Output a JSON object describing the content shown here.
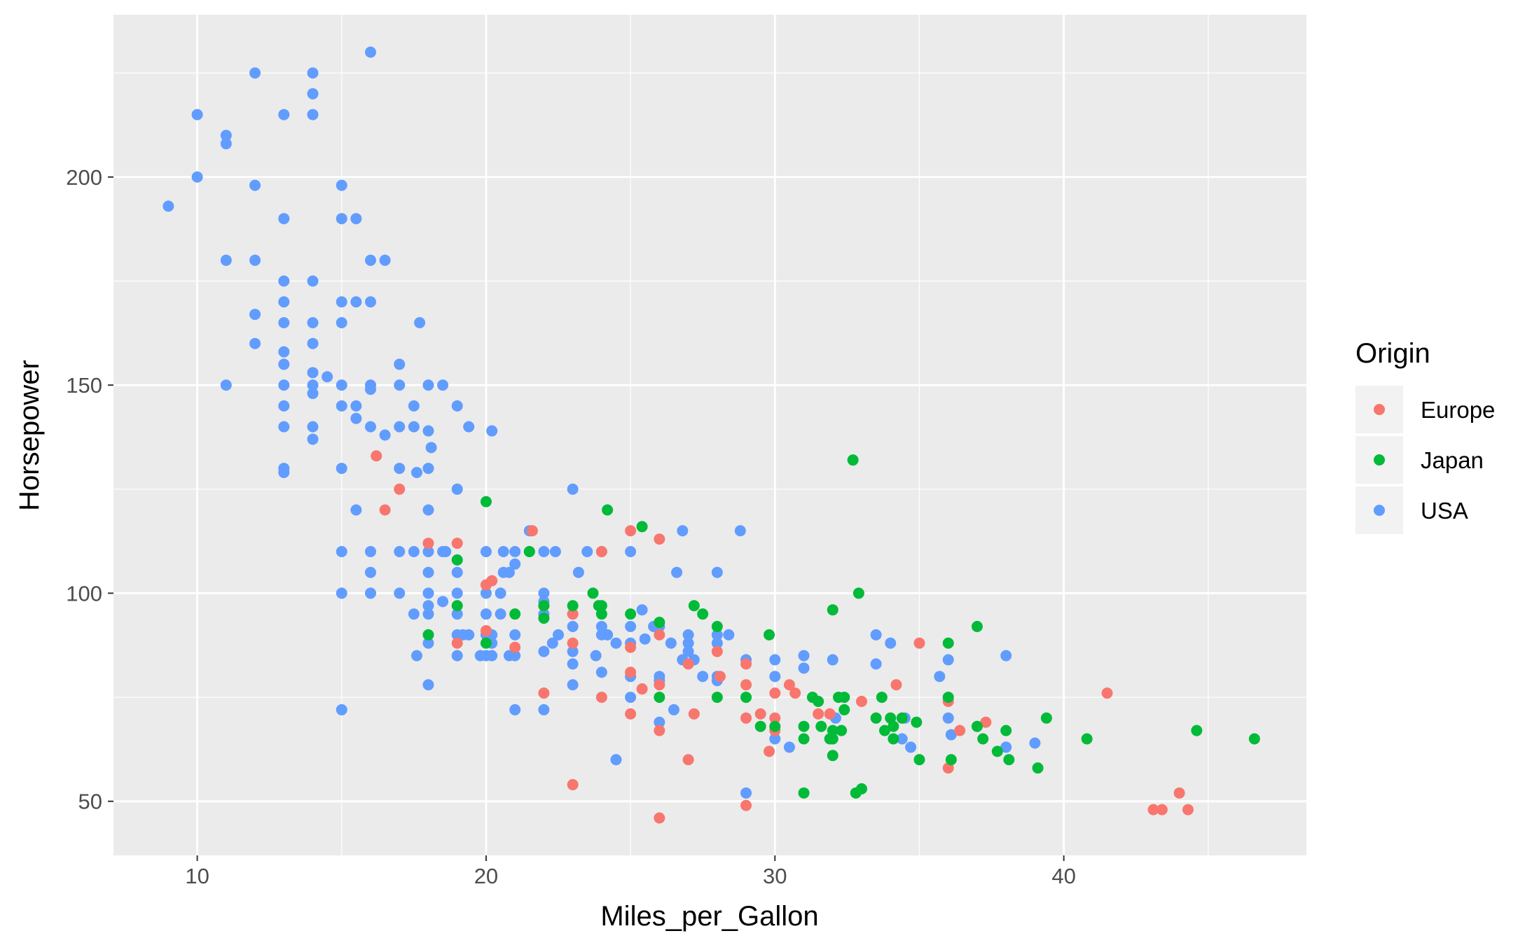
{
  "chart_data": {
    "type": "scatter",
    "xlabel": "Miles_per_Gallon",
    "ylabel": "Horsepower",
    "xlim": [
      7.1,
      48.4
    ],
    "ylim": [
      37.0,
      239.0
    ],
    "x_ticks": [
      10,
      20,
      30,
      40
    ],
    "y_ticks": [
      50,
      100,
      150,
      200
    ],
    "x_tick_labels": [
      "10",
      "20",
      "30",
      "40"
    ],
    "y_tick_labels": [
      "50",
      "100",
      "150",
      "200"
    ],
    "grid": true,
    "legend": {
      "title": "Origin",
      "position": "right"
    },
    "colors": {
      "Europe": "#F8766D",
      "Japan": "#00BA38",
      "USA": "#619CFF",
      "panel": "#EBEBEB",
      "grid": "#FFFFFF"
    },
    "series": [
      {
        "name": "USA",
        "points": [
          [
            9,
            193
          ],
          [
            10,
            215
          ],
          [
            10,
            200
          ],
          [
            11,
            210
          ],
          [
            11,
            208
          ],
          [
            11,
            180
          ],
          [
            11,
            150
          ],
          [
            12,
            225
          ],
          [
            12,
            198
          ],
          [
            12,
            180
          ],
          [
            12,
            167
          ],
          [
            12,
            160
          ],
          [
            13,
            215
          ],
          [
            13,
            190
          ],
          [
            13,
            175
          ],
          [
            13,
            170
          ],
          [
            13,
            165
          ],
          [
            13,
            158
          ],
          [
            13,
            155
          ],
          [
            13,
            150
          ],
          [
            13,
            145
          ],
          [
            13,
            140
          ],
          [
            13,
            130
          ],
          [
            13,
            129
          ],
          [
            14,
            225
          ],
          [
            14,
            220
          ],
          [
            14,
            215
          ],
          [
            14,
            175
          ],
          [
            14,
            165
          ],
          [
            14,
            160
          ],
          [
            14,
            153
          ],
          [
            14,
            150
          ],
          [
            14,
            148
          ],
          [
            14,
            140
          ],
          [
            14,
            137
          ],
          [
            14.5,
            152
          ],
          [
            15,
            198
          ],
          [
            15,
            190
          ],
          [
            15,
            170
          ],
          [
            15,
            165
          ],
          [
            15,
            150
          ],
          [
            15,
            145
          ],
          [
            15,
            130
          ],
          [
            15,
            110
          ],
          [
            15,
            100
          ],
          [
            15,
            72
          ],
          [
            15.5,
            190
          ],
          [
            15.5,
            170
          ],
          [
            15.5,
            145
          ],
          [
            15.5,
            142
          ],
          [
            15.5,
            120
          ],
          [
            16,
            230
          ],
          [
            16,
            180
          ],
          [
            16,
            170
          ],
          [
            16,
            150
          ],
          [
            16,
            149
          ],
          [
            16,
            140
          ],
          [
            16,
            110
          ],
          [
            16,
            105
          ],
          [
            16,
            100
          ],
          [
            16.5,
            180
          ],
          [
            16.5,
            138
          ],
          [
            17,
            155
          ],
          [
            17,
            150
          ],
          [
            17,
            140
          ],
          [
            17,
            130
          ],
          [
            17,
            110
          ],
          [
            17,
            100
          ],
          [
            17.5,
            145
          ],
          [
            17.5,
            140
          ],
          [
            17.5,
            110
          ],
          [
            17.5,
            95
          ],
          [
            17.6,
            129
          ],
          [
            17.7,
            165
          ],
          [
            17.6,
            85
          ],
          [
            18,
            150
          ],
          [
            18,
            139
          ],
          [
            18,
            130
          ],
          [
            18,
            120
          ],
          [
            18,
            110
          ],
          [
            18,
            105
          ],
          [
            18,
            100
          ],
          [
            18,
            97
          ],
          [
            18,
            95
          ],
          [
            18,
            88
          ],
          [
            18,
            78
          ],
          [
            18.1,
            135
          ],
          [
            18.5,
            150
          ],
          [
            18.5,
            110
          ],
          [
            18.5,
            98
          ],
          [
            18.6,
            110
          ],
          [
            19,
            145
          ],
          [
            19,
            125
          ],
          [
            19,
            105
          ],
          [
            19,
            100
          ],
          [
            19,
            95
          ],
          [
            19,
            90
          ],
          [
            19,
            85
          ],
          [
            19.2,
            90
          ],
          [
            19.4,
            140
          ],
          [
            19.4,
            90
          ],
          [
            19.8,
            85
          ],
          [
            20,
            110
          ],
          [
            20,
            100
          ],
          [
            20,
            95
          ],
          [
            20,
            90
          ],
          [
            20,
            85
          ],
          [
            20.2,
            139
          ],
          [
            20.2,
            90
          ],
          [
            20.2,
            88
          ],
          [
            20.2,
            85
          ],
          [
            20.5,
            95
          ],
          [
            20.5,
            100
          ],
          [
            20.6,
            105
          ],
          [
            20.6,
            110
          ],
          [
            20.8,
            105
          ],
          [
            20.8,
            85
          ],
          [
            21,
            110
          ],
          [
            21,
            107
          ],
          [
            21,
            90
          ],
          [
            21,
            85
          ],
          [
            21,
            72
          ],
          [
            21.5,
            115
          ],
          [
            21.5,
            110
          ],
          [
            22,
            110
          ],
          [
            22,
            100
          ],
          [
            22,
            98
          ],
          [
            22,
            95
          ],
          [
            22,
            86
          ],
          [
            22,
            72
          ],
          [
            22.3,
            88
          ],
          [
            22.4,
            110
          ],
          [
            22.5,
            90
          ],
          [
            23,
            125
          ],
          [
            23,
            95
          ],
          [
            23,
            86
          ],
          [
            23,
            83
          ],
          [
            23,
            78
          ],
          [
            23,
            92
          ],
          [
            23.2,
            105
          ],
          [
            23.5,
            110
          ],
          [
            23.8,
            85
          ],
          [
            24,
            110
          ],
          [
            24,
            92
          ],
          [
            24,
            90
          ],
          [
            24,
            81
          ],
          [
            24.2,
            90
          ],
          [
            24.5,
            88
          ],
          [
            24.5,
            60
          ],
          [
            25,
            110
          ],
          [
            25,
            92
          ],
          [
            25,
            88
          ],
          [
            25,
            80
          ],
          [
            25,
            75
          ],
          [
            25.4,
            96
          ],
          [
            25.5,
            89
          ],
          [
            25.8,
            92
          ],
          [
            26,
            92
          ],
          [
            26,
            80
          ],
          [
            26,
            79
          ],
          [
            26,
            69
          ],
          [
            26.4,
            88
          ],
          [
            26.5,
            72
          ],
          [
            26.6,
            105
          ],
          [
            26.8,
            115
          ],
          [
            26.8,
            84
          ],
          [
            27,
            90
          ],
          [
            27,
            88
          ],
          [
            27,
            86
          ],
          [
            27.2,
            84
          ],
          [
            27.5,
            80
          ],
          [
            28,
            105
          ],
          [
            28,
            90
          ],
          [
            28,
            88
          ],
          [
            28,
            80
          ],
          [
            28,
            79
          ],
          [
            28.4,
            90
          ],
          [
            28.8,
            115
          ],
          [
            29,
            84
          ],
          [
            29,
            52
          ],
          [
            30,
            84
          ],
          [
            30,
            80
          ],
          [
            30,
            65
          ],
          [
            30.5,
            63
          ],
          [
            31,
            85
          ],
          [
            31,
            82
          ],
          [
            32,
            84
          ],
          [
            32.1,
            70
          ],
          [
            33.5,
            90
          ],
          [
            33.5,
            83
          ],
          [
            34,
            88
          ],
          [
            34.5,
            70
          ],
          [
            34.4,
            65
          ],
          [
            34.7,
            63
          ],
          [
            35.7,
            80
          ],
          [
            36,
            84
          ],
          [
            36,
            70
          ],
          [
            36.1,
            66
          ],
          [
            38,
            85
          ],
          [
            38,
            63
          ],
          [
            39,
            64
          ]
        ]
      },
      {
        "name": "Europe",
        "points": [
          [
            16.2,
            133
          ],
          [
            16.5,
            120
          ],
          [
            17,
            125
          ],
          [
            18,
            112
          ],
          [
            19,
            112
          ],
          [
            19,
            88
          ],
          [
            20,
            102
          ],
          [
            20,
            91
          ],
          [
            20.2,
            103
          ],
          [
            21,
            87
          ],
          [
            21.6,
            115
          ],
          [
            22,
            76
          ],
          [
            22,
            97
          ],
          [
            23,
            95
          ],
          [
            23,
            88
          ],
          [
            23,
            54
          ],
          [
            24,
            110
          ],
          [
            24,
            75
          ],
          [
            25,
            115
          ],
          [
            25,
            87
          ],
          [
            25,
            81
          ],
          [
            25,
            71
          ],
          [
            25.4,
            77
          ],
          [
            26,
            113
          ],
          [
            26,
            90
          ],
          [
            26,
            78
          ],
          [
            26,
            67
          ],
          [
            26,
            46
          ],
          [
            27,
            83
          ],
          [
            27,
            60
          ],
          [
            27.2,
            71
          ],
          [
            28,
            86
          ],
          [
            28.1,
            80
          ],
          [
            29,
            83
          ],
          [
            29,
            78
          ],
          [
            29,
            70
          ],
          [
            29,
            49
          ],
          [
            29.5,
            71
          ],
          [
            29.8,
            62
          ],
          [
            30,
            76
          ],
          [
            30,
            70
          ],
          [
            30,
            67
          ],
          [
            30.5,
            78
          ],
          [
            30.7,
            76
          ],
          [
            31.5,
            71
          ],
          [
            31.9,
            71
          ],
          [
            33,
            74
          ],
          [
            34.2,
            78
          ],
          [
            35,
            88
          ],
          [
            36,
            74
          ],
          [
            36,
            58
          ],
          [
            36.4,
            67
          ],
          [
            37.3,
            69
          ],
          [
            41.5,
            76
          ],
          [
            43.1,
            48
          ],
          [
            43.4,
            48
          ],
          [
            44,
            52
          ],
          [
            44.3,
            48
          ]
        ]
      },
      {
        "name": "Japan",
        "points": [
          [
            18,
            90
          ],
          [
            19,
            108
          ],
          [
            19,
            97
          ],
          [
            20,
            122
          ],
          [
            20,
            88
          ],
          [
            21,
            95
          ],
          [
            21.5,
            110
          ],
          [
            22,
            97
          ],
          [
            22,
            94
          ],
          [
            23,
            97
          ],
          [
            23.7,
            100
          ],
          [
            23.9,
            97
          ],
          [
            24,
            97
          ],
          [
            24,
            95
          ],
          [
            24.2,
            120
          ],
          [
            25,
            95
          ],
          [
            25.4,
            116
          ],
          [
            26,
            93
          ],
          [
            26,
            75
          ],
          [
            27.2,
            97
          ],
          [
            27.5,
            95
          ],
          [
            28,
            92
          ],
          [
            28,
            75
          ],
          [
            29,
            75
          ],
          [
            29.5,
            68
          ],
          [
            29.8,
            90
          ],
          [
            30,
            68
          ],
          [
            31,
            68
          ],
          [
            31,
            65
          ],
          [
            31,
            52
          ],
          [
            31.3,
            75
          ],
          [
            31.5,
            74
          ],
          [
            31.6,
            68
          ],
          [
            31.9,
            65
          ],
          [
            32,
            96
          ],
          [
            32,
            67
          ],
          [
            32,
            65
          ],
          [
            32,
            61
          ],
          [
            32.2,
            75
          ],
          [
            32.3,
            67
          ],
          [
            32.4,
            72
          ],
          [
            32.4,
            75
          ],
          [
            32.7,
            132
          ],
          [
            32.8,
            52
          ],
          [
            32.9,
            100
          ],
          [
            33,
            53
          ],
          [
            33.5,
            70
          ],
          [
            33.7,
            75
          ],
          [
            33.8,
            67
          ],
          [
            34,
            70
          ],
          [
            34.1,
            68
          ],
          [
            34.1,
            65
          ],
          [
            34.4,
            70
          ],
          [
            34.9,
            69
          ],
          [
            35,
            60
          ],
          [
            36,
            88
          ],
          [
            36,
            75
          ],
          [
            36.1,
            60
          ],
          [
            37,
            92
          ],
          [
            37,
            68
          ],
          [
            37.2,
            65
          ],
          [
            37.7,
            62
          ],
          [
            38,
            67
          ],
          [
            38.1,
            60
          ],
          [
            39.1,
            58
          ],
          [
            39.4,
            70
          ],
          [
            40.8,
            65
          ],
          [
            44.6,
            67
          ],
          [
            46.6,
            65
          ]
        ]
      }
    ]
  }
}
